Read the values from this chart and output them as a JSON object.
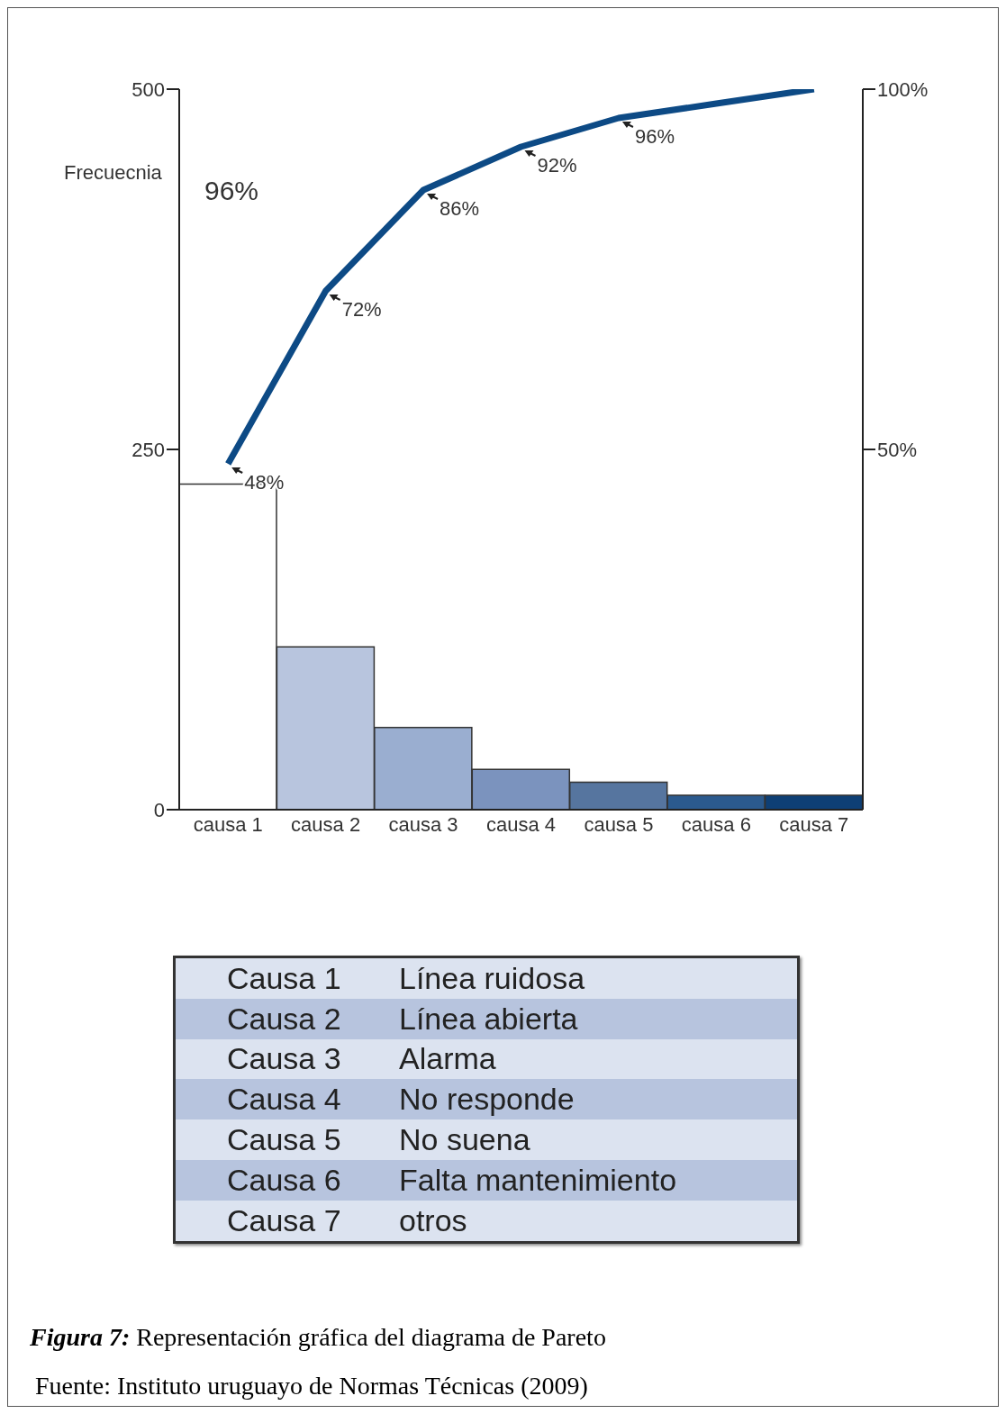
{
  "chart_data": {
    "type": "bar",
    "ylabel": "Frecuecnia",
    "categories": [
      "causa 1",
      "causa 2",
      "causa 3",
      "causa 4",
      "causa 5",
      "causa 6",
      "causa 7"
    ],
    "ylim": [
      0,
      500
    ],
    "yticks": [
      0,
      250,
      500
    ],
    "y2lim": [
      0,
      100
    ],
    "y2ticks": [
      {
        "value": 50,
        "label": "50%"
      },
      {
        "value": 100,
        "label": "100%"
      }
    ],
    "series": [
      {
        "type": "bar",
        "colors": [
          "#ffffff",
          "#b8c5de",
          "#9aaed0",
          "#7b93be",
          "#56759f",
          "#2b5a8e",
          "#0e3f75"
        ],
        "values": [
          226,
          113,
          57,
          28,
          19,
          10,
          10
        ]
      },
      {
        "type": "line",
        "axis": "y2",
        "color": "#0d4a85",
        "values": [
          48,
          72,
          86,
          92,
          96,
          98,
          100
        ],
        "value_labels": [
          "48%",
          "72%",
          "86%",
          "92%",
          "96%",
          null,
          null
        ]
      }
    ],
    "grid": false,
    "legend": false,
    "annotations": [
      "96%",
      "Causa 1",
      "Línea ruidosa",
      "Causa 2",
      "Línea abierta",
      "Causa 3",
      "Alarma",
      "Causa 4",
      "No responde",
      "Causa 5",
      "No suena",
      "Causa 6",
      "Falta mantenimiento",
      "Causa 7",
      "otros",
      "Figura 7: Representación gráfica del diagrama de Pareto",
      "Fuente: Instituto uruguayo de Normas Técnicas (2009)"
    ]
  }
}
